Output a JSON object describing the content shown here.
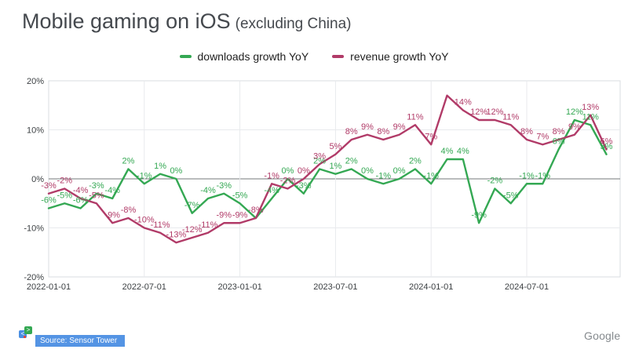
{
  "title": {
    "main": "Mobile gaming on iOS",
    "suffix": "(excluding China)"
  },
  "legend": [
    {
      "label": "downloads growth YoY",
      "color": "#34a853"
    },
    {
      "label": "revenue growth YoY",
      "color": "#b13b68"
    }
  ],
  "source": {
    "label": "Source: Sensor Tower",
    "bar_color": "#5494e4"
  },
  "footer": {
    "brand": "Google"
  },
  "chart_data": {
    "type": "line",
    "title": "Mobile gaming on iOS (excluding China)",
    "xlabel": "",
    "ylabel": "",
    "ylim": [
      -20,
      20
    ],
    "grid": true,
    "legend_position": "top",
    "x": [
      "2022-01",
      "2022-02",
      "2022-03",
      "2022-04",
      "2022-05",
      "2022-06",
      "2022-07",
      "2022-08",
      "2022-09",
      "2022-10",
      "2022-11",
      "2022-12",
      "2023-01",
      "2023-02",
      "2023-03",
      "2023-04",
      "2023-05",
      "2023-06",
      "2023-07",
      "2023-08",
      "2023-09",
      "2023-10",
      "2023-11",
      "2023-12",
      "2024-01",
      "2024-02",
      "2024-03",
      "2024-04",
      "2024-05",
      "2024-06",
      "2024-07",
      "2024-08",
      "2024-09",
      "2024-10",
      "2024-11",
      "2024-12"
    ],
    "x_tick_labels": [
      "2022-01-01",
      "2022-07-01",
      "2023-01-01",
      "2023-07-01",
      "2024-01-01",
      "2024-07-01"
    ],
    "x_tick_positions": [
      0,
      6,
      12,
      18,
      24,
      30
    ],
    "y_ticks": [
      {
        "label": "20%",
        "value": 20
      },
      {
        "label": "10%",
        "value": 10
      },
      {
        "label": "0%",
        "value": 0
      },
      {
        "label": "-10%",
        "value": -10
      },
      {
        "label": "-20%",
        "value": -20
      }
    ],
    "series": [
      {
        "name": "downloads growth YoY",
        "color": "#34a853",
        "values": [
          -6,
          -5,
          -6,
          -3,
          -4,
          2,
          -1,
          1,
          0,
          -7,
          -4,
          -3,
          -5,
          -8,
          -4,
          0,
          -3,
          2,
          1,
          2,
          0,
          -1,
          0,
          2,
          -1,
          4,
          4,
          -9,
          -2,
          -5,
          -1,
          -1,
          6,
          12,
          11,
          5
        ],
        "labels": [
          "-6%",
          "-5%",
          "-6%",
          "-3%",
          "-4%",
          "2%",
          "-1%",
          "1%",
          "0%",
          "-7%",
          "-4%",
          "-3%",
          "-5%",
          "",
          "-4%",
          "0%",
          "-3%",
          "2%",
          "1%",
          "2%",
          "0%",
          "-1%",
          "0%",
          "2%",
          "-1%",
          "4%",
          "4%",
          "-9%",
          "-2%",
          "-5%",
          "-1%",
          "-1%",
          "6%",
          "12%",
          "11%",
          "5%"
        ]
      },
      {
        "name": "revenue growth YoY",
        "color": "#b13b68",
        "values": [
          -3,
          -2,
          -4,
          -5,
          -9,
          -8,
          -10,
          -11,
          -13,
          -12,
          -11,
          -9,
          -9,
          -8,
          -1,
          -2,
          0,
          3,
          5,
          8,
          9,
          8,
          9,
          11,
          7,
          17,
          14,
          12,
          12,
          11,
          8,
          7,
          8,
          9,
          13,
          6
        ],
        "labels": [
          "-3%",
          "-2%",
          "-4%",
          "-5%",
          "-9%",
          "-8%",
          "-10%",
          "-11%",
          "-13%",
          "-12%",
          "-11%",
          "-9%",
          "-9%",
          "-8%",
          "-1%",
          "-2%",
          "0%",
          "3%",
          "5%",
          "8%",
          "9%",
          "8%",
          "9%",
          "11%",
          "7%",
          "",
          "14%",
          "12%",
          "12%",
          "11%",
          "8%",
          "7%",
          "8%",
          "9%",
          "13%",
          "6%"
        ]
      }
    ]
  }
}
